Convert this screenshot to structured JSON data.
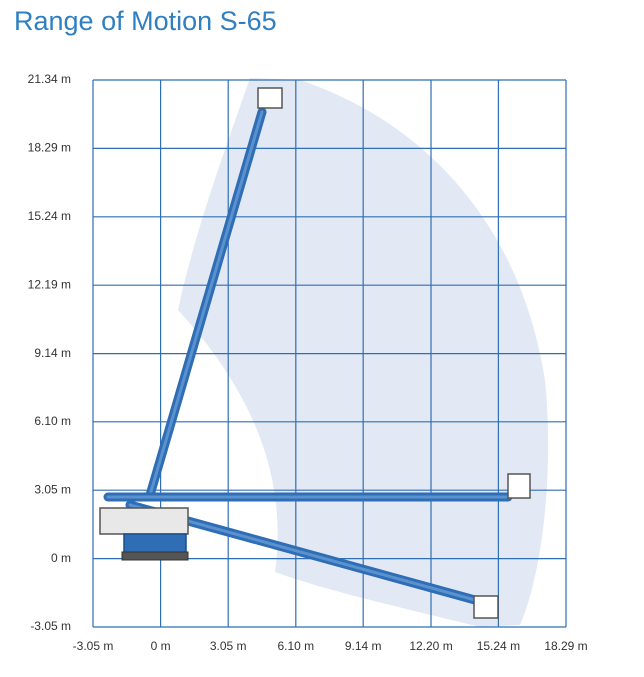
{
  "chart_data": {
    "type": "range",
    "title": "Range of Motion S-65",
    "xlim": [
      -3.05,
      18.29
    ],
    "xticks": [
      {
        "value": -3.05,
        "label": "-3.05 m"
      },
      {
        "value": 0,
        "label": "0 m"
      },
      {
        "value": 3.05,
        "label": "3.05 m"
      },
      {
        "value": 6.1,
        "label": "6.10 m"
      },
      {
        "value": 9.14,
        "label": "9.14 m"
      },
      {
        "value": 12.2,
        "label": "12.20 m"
      },
      {
        "value": 15.24,
        "label": "15.24 m"
      },
      {
        "value": 18.29,
        "label": "18.29 m"
      }
    ],
    "ylim": [
      -3.05,
      21.34
    ],
    "yticks": [
      {
        "value": -3.05,
        "label": "-3.05 m"
      },
      {
        "value": 0,
        "label": "0 m"
      },
      {
        "value": 3.05,
        "label": "3.05 m"
      },
      {
        "value": 6.1,
        "label": "6.10 m"
      },
      {
        "value": 9.14,
        "label": "9.14 m"
      },
      {
        "value": 12.19,
        "label": "12.19 m"
      },
      {
        "value": 15.24,
        "label": "15.24 m"
      },
      {
        "value": 18.29,
        "label": "18.29 m"
      },
      {
        "value": 21.34,
        "label": "21.34 m"
      }
    ],
    "grid": true,
    "grid_color": "#2f6fb3"
  }
}
